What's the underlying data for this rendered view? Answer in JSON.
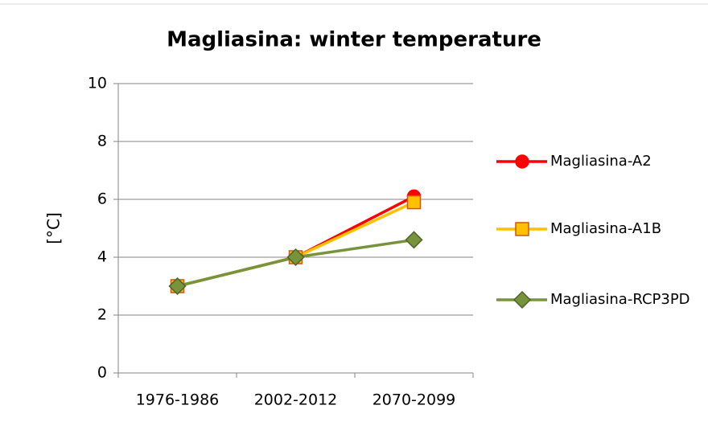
{
  "chart_data": {
    "type": "line",
    "title": "Magliasina: winter temperature",
    "y_label": "[°C]",
    "categories": [
      "1976-1986",
      "2002-2012",
      "2070-2099"
    ],
    "series": [
      {
        "name": "Magliasina-A2",
        "color": "#ff0000",
        "marker": "circle",
        "marker_edge": "#ff0000",
        "values": [
          3,
          4,
          6.1
        ]
      },
      {
        "name": "Magliasina-A1B",
        "color": "#ffc000",
        "marker": "square",
        "marker_edge": "#c55a11",
        "values": [
          3,
          4,
          5.9
        ]
      },
      {
        "name": "Magliasina-RCP3PD",
        "color": "#77933c",
        "marker": "diamond",
        "marker_edge": "#4f6228",
        "values": [
          3,
          4,
          4.6
        ]
      }
    ],
    "ylim": [
      0,
      10
    ],
    "yticks": [
      0,
      2,
      4,
      6,
      8,
      10
    ],
    "grid": true,
    "legend": "right"
  }
}
